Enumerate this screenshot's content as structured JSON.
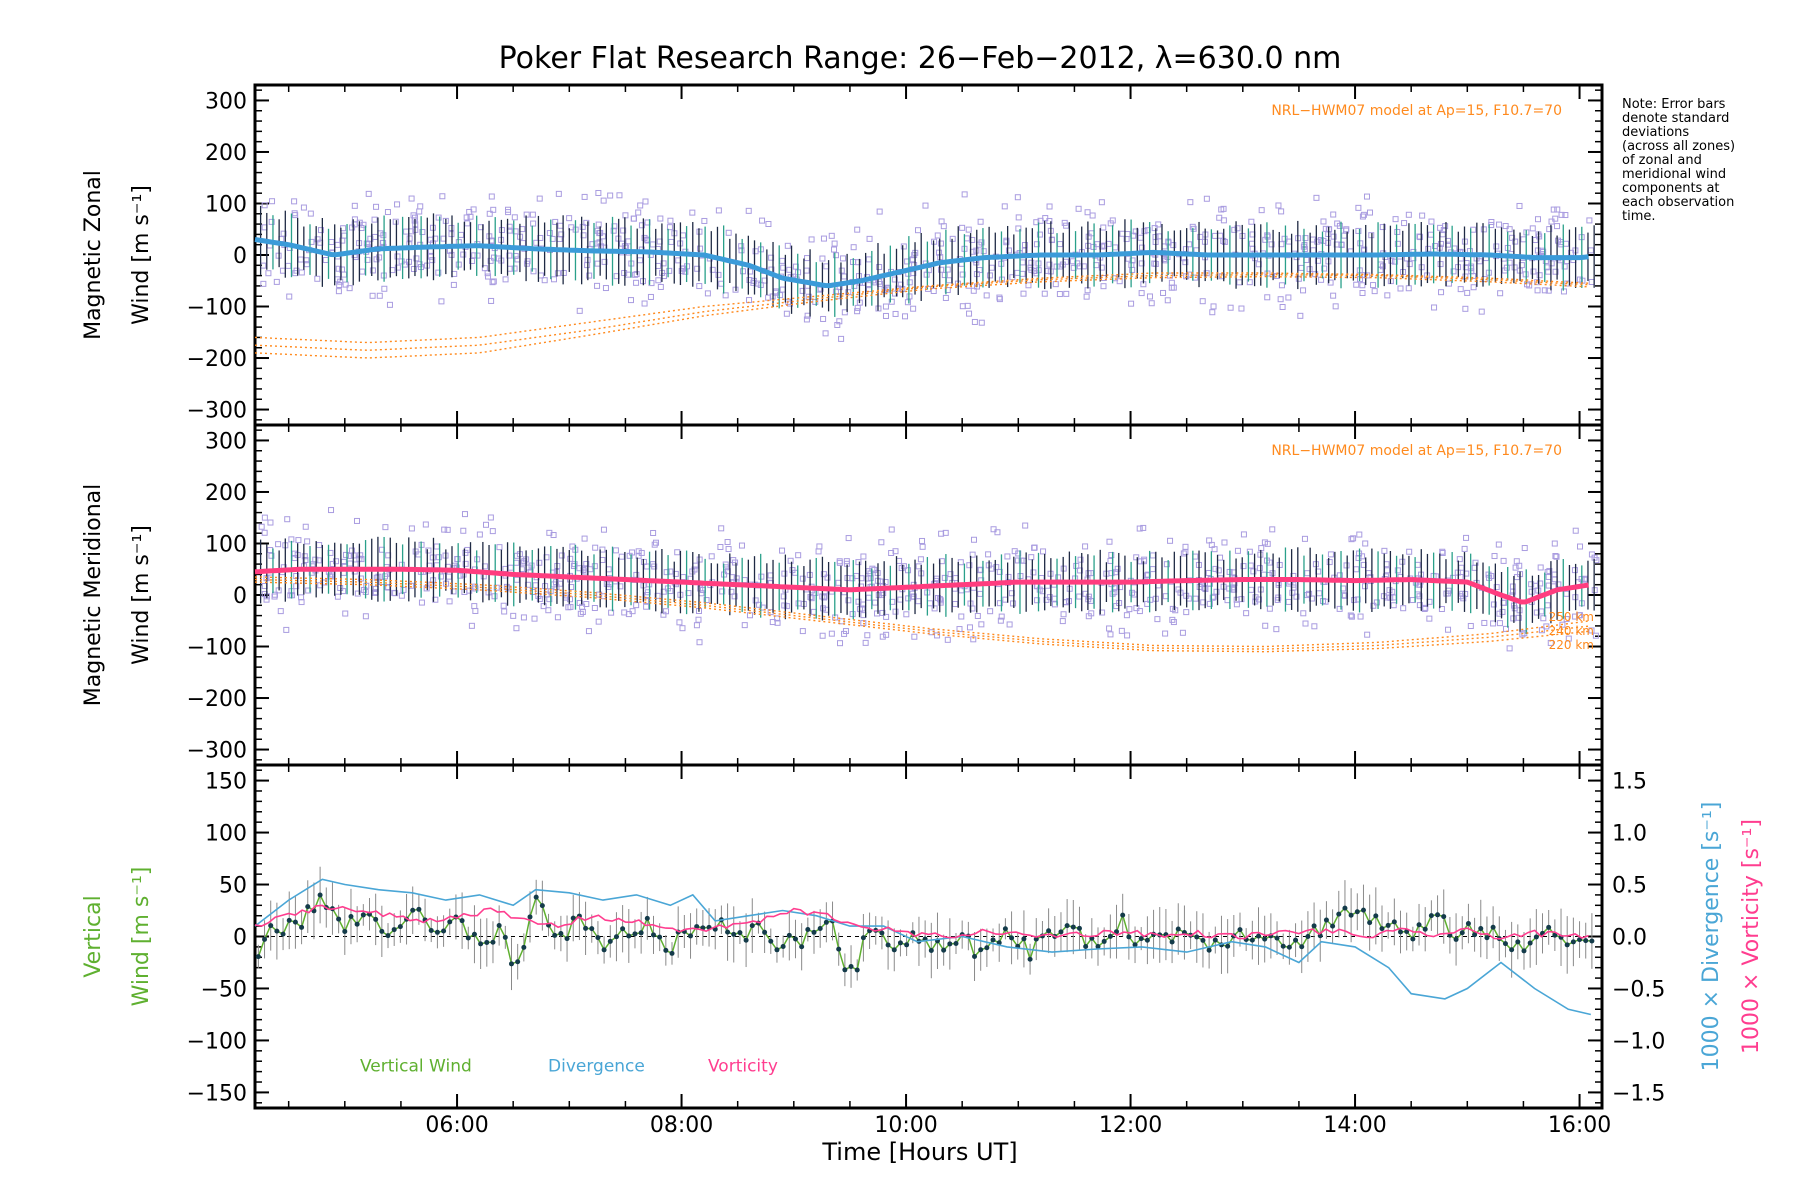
{
  "title": "Poker Flat Research Range: 26−Feb−2012, λ=630.0 nm",
  "note_lines": [
    "Note: Error bars",
    "denote standard",
    "deviations",
    "(across all zones)",
    "of zonal and",
    "meridional wind",
    "components at",
    "each observation",
    "time."
  ],
  "colors": {
    "zonal_mean": "#3b9bd9",
    "meridional_mean": "#ff3d7f",
    "vertical": "#5fb030",
    "divergence": "#4aa6d6",
    "vorticity": "#ff3d8f",
    "model": "#ff8a1e",
    "scatter": "#a99ce0",
    "errorbar": "#1f2a44"
  },
  "chart_data": [
    {
      "type": "scatter",
      "panel": "zonal",
      "ylabel_line1": "Magnetic Zonal",
      "ylabel_line2": "Wind [m s⁻¹]",
      "ylim": [
        -330,
        330
      ],
      "yticks": [
        "300",
        "200",
        "100",
        "0",
        "−100",
        "−200",
        "−300"
      ],
      "ytick_values": [
        300,
        200,
        100,
        0,
        -100,
        -200,
        -300
      ],
      "model_label": "NRL−HWM07 model at Ap=15, F10.7=70",
      "mean_series": {
        "x": [
          4.2,
          4.5,
          4.9,
          5.3,
          5.8,
          6.2,
          6.7,
          7.2,
          7.7,
          8.2,
          8.6,
          8.9,
          9.3,
          9.6,
          9.9,
          10.3,
          10.7,
          11.2,
          11.7,
          12.2,
          12.7,
          13.2,
          13.7,
          14.2,
          14.7,
          15.2,
          15.6,
          16.0,
          16.1
        ],
        "y": [
          30,
          20,
          0,
          12,
          16,
          18,
          12,
          8,
          6,
          0,
          -20,
          -45,
          -60,
          -50,
          -35,
          -15,
          -5,
          0,
          0,
          5,
          0,
          0,
          0,
          0,
          2,
          0,
          -5,
          -5,
          -3
        ]
      },
      "model_curves": [
        {
          "x": [
            4.2,
            5.2,
            6.2,
            7.2,
            8.2,
            9.2,
            10.2,
            11.2,
            12.2,
            13.2,
            14.2,
            15.2,
            16.1
          ],
          "y": [
            -160,
            -170,
            -160,
            -130,
            -100,
            -80,
            -60,
            -45,
            -35,
            -35,
            -38,
            -45,
            -55
          ]
        },
        {
          "x": [
            4.2,
            5.2,
            6.2,
            7.2,
            8.2,
            9.2,
            10.2,
            11.2,
            12.2,
            13.2,
            14.2,
            15.2,
            16.1
          ],
          "y": [
            -175,
            -185,
            -175,
            -145,
            -110,
            -85,
            -62,
            -48,
            -40,
            -38,
            -40,
            -48,
            -58
          ]
        },
        {
          "x": [
            4.2,
            5.2,
            6.2,
            7.2,
            8.2,
            9.2,
            10.2,
            11.2,
            12.2,
            13.2,
            14.2,
            15.2,
            16.1
          ],
          "y": [
            -190,
            -200,
            -190,
            -155,
            -118,
            -90,
            -66,
            -52,
            -44,
            -42,
            -44,
            -52,
            -62
          ]
        }
      ],
      "scatter_spread": 75
    },
    {
      "type": "scatter",
      "panel": "meridional",
      "ylabel_line1": "Magnetic Meridional",
      "ylabel_line2": "Wind [m s⁻¹]",
      "ylim": [
        -330,
        330
      ],
      "yticks": [
        "300",
        "200",
        "100",
        "0",
        "−100",
        "−200",
        "−300"
      ],
      "ytick_values": [
        300,
        200,
        100,
        0,
        -100,
        -200,
        -300
      ],
      "model_label": "NRL−HWM07 model at Ap=15, F10.7=70",
      "altitude_labels": [
        "250 km",
        "240 km",
        "220 km"
      ],
      "mean_series": {
        "x": [
          4.2,
          4.6,
          5.0,
          5.5,
          6.0,
          6.5,
          7.0,
          7.5,
          8.0,
          8.5,
          9.0,
          9.5,
          10.0,
          10.5,
          11.0,
          11.5,
          12.0,
          12.5,
          13.0,
          13.5,
          14.0,
          14.5,
          15.0,
          15.3,
          15.5,
          15.8,
          16.1
        ],
        "y": [
          45,
          50,
          50,
          50,
          48,
          40,
          35,
          30,
          25,
          20,
          15,
          10,
          15,
          20,
          25,
          25,
          25,
          28,
          30,
          30,
          28,
          30,
          25,
          0,
          -15,
          10,
          20
        ]
      },
      "model_curves": [
        {
          "x": [
            4.2,
            5.2,
            6.2,
            7.2,
            8.2,
            9.2,
            10.2,
            11.2,
            12.2,
            13.2,
            14.2,
            15.2,
            16.1
          ],
          "y": [
            35,
            30,
            20,
            5,
            -15,
            -40,
            -65,
            -85,
            -98,
            -100,
            -92,
            -75,
            -50
          ]
        },
        {
          "x": [
            4.2,
            5.2,
            6.2,
            7.2,
            8.2,
            9.2,
            10.2,
            11.2,
            12.2,
            13.2,
            14.2,
            15.2,
            16.1
          ],
          "y": [
            30,
            25,
            15,
            0,
            -20,
            -45,
            -70,
            -90,
            -103,
            -105,
            -98,
            -82,
            -60
          ]
        },
        {
          "x": [
            4.2,
            5.2,
            6.2,
            7.2,
            8.2,
            9.2,
            10.2,
            11.2,
            12.2,
            13.2,
            14.2,
            15.2,
            16.1
          ],
          "y": [
            25,
            20,
            10,
            -5,
            -25,
            -50,
            -75,
            -95,
            -108,
            -110,
            -104,
            -90,
            -70
          ]
        }
      ],
      "scatter_spread": 70
    },
    {
      "type": "line",
      "panel": "vertical",
      "ylabel_line1": "Vertical",
      "ylabel_line2": "Wind [m s⁻¹]",
      "ylim": [
        -165,
        165
      ],
      "yticks": [
        "150",
        "100",
        "50",
        "0",
        "−50",
        "−100",
        "−150"
      ],
      "ytick_values": [
        150,
        100,
        50,
        0,
        -50,
        -100,
        -150
      ],
      "y2lim": [
        -1.65,
        1.65
      ],
      "y2ticks": [
        "1.5",
        "1.0",
        "0.5",
        "0.0",
        "−0.5",
        "−1.0",
        "−1.5"
      ],
      "y2tick_values": [
        1.5,
        1.0,
        0.5,
        0.0,
        -0.5,
        -1.0,
        -1.5
      ],
      "y2label_divergence": "1000 × Divergence [s⁻¹]",
      "y2label_vorticity": "1000 × Vorticity [s⁻¹]",
      "legend": [
        "Vertical Wind",
        "Divergence",
        "Vorticity"
      ],
      "series": [
        {
          "name": "Vertical Wind",
          "axis": "left",
          "x": [
            4.2,
            4.4,
            4.6,
            4.8,
            5.0,
            5.2,
            5.4,
            5.6,
            5.8,
            6.0,
            6.2,
            6.4,
            6.5,
            6.7,
            6.9,
            7.1,
            7.3,
            7.5,
            7.7,
            7.9,
            8.1,
            8.3,
            8.5,
            8.7,
            8.9,
            9.1,
            9.3,
            9.5,
            9.7,
            9.9,
            10.1,
            10.3,
            10.5,
            10.7,
            10.9,
            11.1,
            11.3,
            11.5,
            11.7,
            11.9,
            12.1,
            12.3,
            12.5,
            12.7,
            12.9,
            13.1,
            13.3,
            13.5,
            13.7,
            13.9,
            14.1,
            14.3,
            14.5,
            14.7,
            14.9,
            15.1,
            15.3,
            15.5,
            15.7,
            15.9,
            16.1
          ],
          "y": [
            -15,
            10,
            15,
            35,
            10,
            20,
            5,
            25,
            0,
            15,
            -10,
            5,
            -40,
            30,
            0,
            15,
            -15,
            5,
            10,
            -10,
            5,
            15,
            -5,
            10,
            -10,
            0,
            20,
            -40,
            10,
            -5,
            0,
            -10,
            0,
            -20,
            5,
            -15,
            10,
            0,
            -5,
            15,
            -5,
            0,
            5,
            -5,
            0,
            5,
            0,
            -10,
            10,
            25,
            20,
            10,
            0,
            15,
            5,
            10,
            -5,
            -15,
            10,
            0,
            -5
          ]
        },
        {
          "name": "Divergence",
          "axis": "right",
          "x": [
            4.2,
            4.5,
            4.8,
            5.0,
            5.3,
            5.6,
            5.9,
            6.2,
            6.5,
            6.7,
            7.0,
            7.3,
            7.6,
            7.9,
            8.1,
            8.3,
            8.6,
            8.9,
            9.2,
            9.5,
            9.8,
            10.1,
            10.5,
            10.9,
            11.3,
            11.7,
            12.1,
            12.5,
            12.9,
            13.2,
            13.5,
            13.7,
            14.0,
            14.3,
            14.5,
            14.8,
            15.0,
            15.3,
            15.6,
            15.9,
            16.1
          ],
          "y": [
            0.1,
            0.35,
            0.55,
            0.5,
            0.45,
            0.42,
            0.35,
            0.4,
            0.3,
            0.45,
            0.42,
            0.35,
            0.4,
            0.3,
            0.4,
            0.15,
            0.2,
            0.25,
            0.2,
            0.1,
            0.1,
            -0.05,
            0.0,
            -0.1,
            -0.15,
            -0.12,
            -0.1,
            -0.15,
            -0.05,
            -0.1,
            -0.25,
            -0.05,
            -0.1,
            -0.3,
            -0.55,
            -0.6,
            -0.5,
            -0.25,
            -0.5,
            -0.7,
            -0.75
          ]
        },
        {
          "name": "Vorticity",
          "axis": "right",
          "x": [
            4.2,
            4.5,
            4.8,
            5.1,
            5.4,
            5.7,
            6.0,
            6.3,
            6.6,
            6.9,
            7.2,
            7.5,
            7.8,
            8.1,
            8.4,
            8.7,
            9.0,
            9.3,
            9.6,
            9.9,
            10.2,
            10.5,
            10.8,
            11.1,
            11.4,
            11.7,
            12.0,
            12.3,
            12.6,
            12.9,
            13.2,
            13.5,
            13.8,
            14.1,
            14.4,
            14.7,
            15.0,
            15.3,
            15.6,
            15.9,
            16.1
          ],
          "y": [
            0.1,
            0.2,
            0.3,
            0.25,
            0.2,
            0.15,
            0.2,
            0.25,
            0.15,
            0.1,
            0.2,
            0.15,
            0.1,
            0.05,
            0.1,
            0.15,
            0.25,
            0.2,
            0.1,
            0.05,
            0.0,
            0.02,
            0.05,
            0.0,
            0.02,
            0.03,
            0.05,
            0.0,
            0.03,
            0.0,
            0.02,
            0.05,
            0.05,
            0.0,
            0.05,
            0.02,
            0.05,
            0.0,
            0.03,
            0.0,
            0.0
          ]
        }
      ]
    }
  ],
  "x_axis": {
    "label": "Time [Hours UT]",
    "xlim": [
      4.2,
      16.2
    ],
    "tick_values": [
      6,
      8,
      10,
      12,
      14,
      16
    ],
    "tick_labels": [
      "06:00",
      "08:00",
      "10:00",
      "12:00",
      "14:00",
      "16:00"
    ]
  }
}
